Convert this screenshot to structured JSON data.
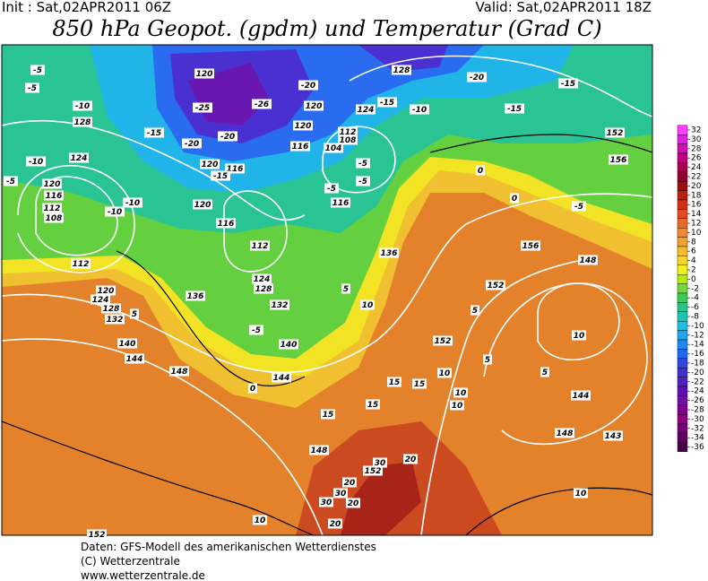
{
  "header": {
    "init": "Init : Sat,02APR2011 06Z",
    "valid": "Valid: Sat,02APR2011 18Z",
    "title": "850 hPa Geopot. (gpdm) und Temperatur (Grad C)"
  },
  "colorbar": {
    "ticks": [
      32,
      30,
      28,
      26,
      24,
      22,
      20,
      18,
      16,
      14,
      12,
      10,
      8,
      6,
      4,
      2,
      0,
      -2,
      -4,
      -6,
      -8,
      -10,
      -12,
      -14,
      -16,
      -18,
      -20,
      -22,
      -24,
      -26,
      -28,
      -30,
      -32,
      -34,
      -36
    ],
    "colors": [
      "#ff40ff",
      "#e020e0",
      "#d010b0",
      "#c00080",
      "#a80050",
      "#900030",
      "#981010",
      "#b82010",
      "#d03018",
      "#e04c20",
      "#e86a28",
      "#f08a30",
      "#f4a030",
      "#f6bc30",
      "#f6d828",
      "#eef020",
      "#b8e818",
      "#70d840",
      "#40c858",
      "#28c488",
      "#20c4b4",
      "#20c0e0",
      "#20a4f0",
      "#2088f0",
      "#2068f0",
      "#3048e0",
      "#4030d0",
      "#5020c0",
      "#6010b0",
      "#7010a0",
      "#800090",
      "#900080",
      "#780078",
      "#600060",
      "#480048"
    ]
  },
  "map_labels": [
    "-5",
    "-5",
    "-10",
    "128",
    "-15",
    "-10",
    "124",
    "-5",
    "120",
    "116",
    "112",
    "108",
    "-10",
    "-10",
    "112",
    "120",
    "124",
    "128",
    "132",
    "5",
    "140",
    "144",
    "148",
    "136",
    "128",
    "124",
    "132",
    "140",
    "144",
    "0",
    "-5",
    "112",
    "116",
    "116",
    "120",
    "-15",
    "-20",
    "-25",
    "-20",
    "120",
    "120",
    "-26",
    "-20",
    "120",
    "120",
    "116",
    "104",
    "108",
    "112",
    "124",
    "-15",
    "-10",
    "128",
    "-20",
    "-15",
    "-15",
    "152",
    "156",
    "-5",
    "0",
    "0",
    "156",
    "148",
    "152",
    "152",
    "10",
    "15",
    "10",
    "10",
    "5",
    "5",
    "10",
    "144",
    "148",
    "143",
    "10",
    "15",
    "15",
    "148",
    "15",
    "30",
    "20",
    "152",
    "20",
    "30",
    "20",
    "30",
    "20",
    "10",
    "152",
    "10",
    "-5",
    "-5",
    "-5",
    "116",
    "5",
    "136",
    "5"
  ],
  "footer": {
    "line1": "Daten: GFS-Modell des amerikanischen Wetterdienstes",
    "line2": "(C) Wetterzentrale",
    "line3": "www.wetterzentrale.de"
  }
}
